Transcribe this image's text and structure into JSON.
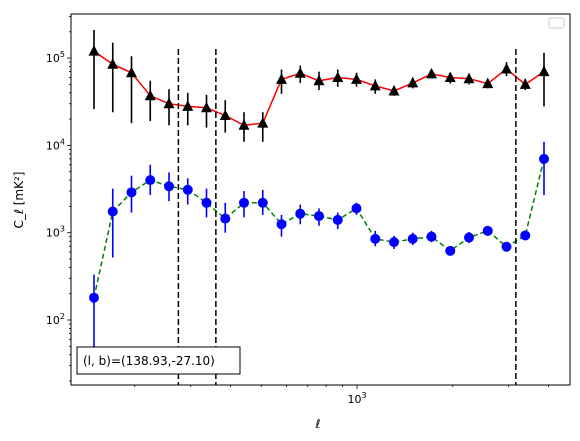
{
  "chart_data": {
    "type": "scatter",
    "xscale": "log",
    "yscale": "log",
    "xlabel": "ℓ",
    "ylabel": "C_ℓ  [mK²]",
    "ylim": [
      18,
      320000
    ],
    "xtick_labels": [
      {
        "value": 1000,
        "base": "10",
        "exp": "3"
      }
    ],
    "ytick_labels": [
      {
        "value": 100,
        "base": "10",
        "exp": "2"
      },
      {
        "value": 1000,
        "base": "10",
        "exp": "3"
      },
      {
        "value": 10000,
        "base": "10",
        "exp": "4"
      },
      {
        "value": 100000,
        "base": "10",
        "exp": "5"
      }
    ],
    "legend": {
      "placement": "top-right",
      "entries": []
    },
    "annotation": "(l, b)=(138.93,-27.10)",
    "vlines_bin_index": [
      4.5,
      6.5,
      22.5
    ],
    "series": [
      {
        "marker": "triangle",
        "marker_color": "#000000",
        "line_color": "#ff0000",
        "line_style": "solid",
        "values": [
          120000,
          85000,
          68000,
          37000,
          30000,
          28000,
          27000,
          22000,
          17000,
          18000,
          57000,
          67000,
          55000,
          60000,
          57000,
          48000,
          42000,
          52000,
          66000,
          60000,
          58000,
          51000,
          75000,
          50000,
          70000
        ],
        "err_low": [
          26000,
          24000,
          18000,
          19000,
          17000,
          17000,
          16000,
          14000,
          11000,
          11000,
          39000,
          52000,
          43000,
          47000,
          47000,
          39000,
          37000,
          45000,
          59000,
          51000,
          50000,
          45000,
          62000,
          43000,
          28000
        ],
        "err_high": [
          210000,
          150000,
          105000,
          55000,
          44000,
          40000,
          38000,
          33000,
          24000,
          24000,
          74000,
          82000,
          70000,
          74000,
          68000,
          57000,
          48000,
          60000,
          73000,
          68000,
          66000,
          58000,
          90000,
          58000,
          115000
        ]
      },
      {
        "marker": "circle",
        "marker_color": "#0000ff",
        "line_color": "#008000",
        "line_style": "dashed",
        "values": [
          180,
          1750,
          2900,
          4000,
          3400,
          3100,
          2200,
          1450,
          2200,
          2200,
          1250,
          1650,
          1550,
          1400,
          1900,
          850,
          780,
          850,
          900,
          620,
          880,
          1050,
          690,
          930,
          7000
        ],
        "err_low": [
          40,
          520,
          1700,
          2700,
          2300,
          2100,
          1500,
          1000,
          1500,
          1600,
          900,
          1250,
          1200,
          1100,
          1600,
          700,
          650,
          720,
          780,
          560,
          760,
          920,
          620,
          820,
          2700
        ],
        "err_high": [
          330,
          3200,
          4500,
          6000,
          4900,
          4200,
          3200,
          2200,
          3000,
          3100,
          1600,
          2100,
          1900,
          1700,
          2200,
          1050,
          920,
          1000,
          1050,
          700,
          1020,
          1180,
          780,
          1060,
          11000
        ]
      }
    ]
  }
}
